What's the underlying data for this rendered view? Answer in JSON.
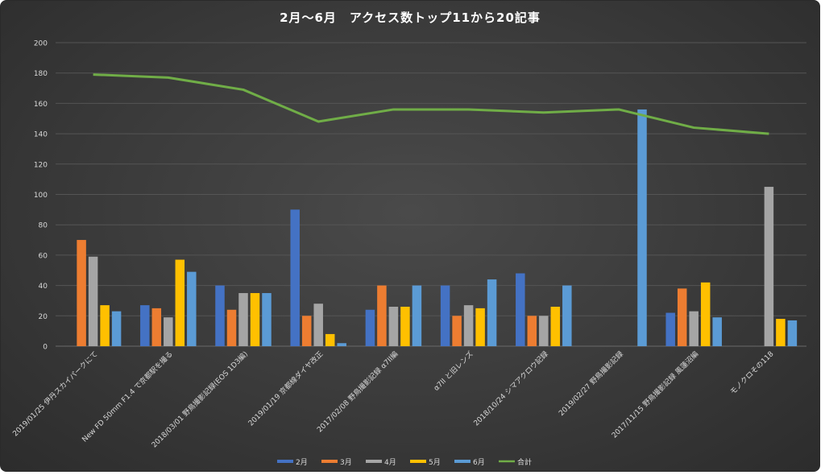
{
  "chart_data": {
    "type": "bar",
    "title": "2月〜6月　アクセス数トップ11から20記事",
    "categories": [
      "2019/01/25 伊丹スカイパークにて",
      "New FD 50mm F1.4 で京都駅を撮る",
      "2018/03/01 野鳥撮影記録(EOS 1D3編)",
      "2019/01/19 京都線ダイヤ改正",
      "2017/02/08 野鳥撮影記録 α7II編",
      "α7II と旧レンズ",
      "2018/10/24 シマアクロウ記録",
      "2019/02/27 野鳥撮影記録",
      "2017/11/15 野鳥撮影記録 風蓮沼編",
      "モノクロその118"
    ],
    "series": [
      {
        "name": "2月",
        "color": "#4472c4",
        "values": [
          null,
          27,
          40,
          90,
          24,
          40,
          48,
          null,
          22,
          null
        ]
      },
      {
        "name": "3月",
        "color": "#ed7d31",
        "values": [
          70,
          25,
          24,
          20,
          40,
          20,
          20,
          null,
          38,
          null
        ]
      },
      {
        "name": "4月",
        "color": "#a5a5a5",
        "values": [
          59,
          19,
          35,
          28,
          26,
          27,
          20,
          null,
          23,
          105
        ]
      },
      {
        "name": "5月",
        "color": "#ffc000",
        "values": [
          27,
          57,
          35,
          8,
          26,
          25,
          26,
          null,
          42,
          18
        ]
      },
      {
        "name": "6月",
        "color": "#5b9bd5",
        "values": [
          23,
          49,
          35,
          2,
          40,
          44,
          40,
          156,
          19,
          17
        ]
      }
    ],
    "line_series": {
      "name": "合計",
      "type": "line",
      "color": "#70ad47",
      "values": [
        179,
        177,
        169,
        148,
        156,
        156,
        154,
        156,
        144,
        140
      ]
    },
    "ylim": [
      0,
      200
    ],
    "yticks": [
      0,
      20,
      40,
      60,
      80,
      100,
      120,
      140,
      160,
      180,
      200
    ],
    "grid": true,
    "legend_position": "bottom"
  }
}
